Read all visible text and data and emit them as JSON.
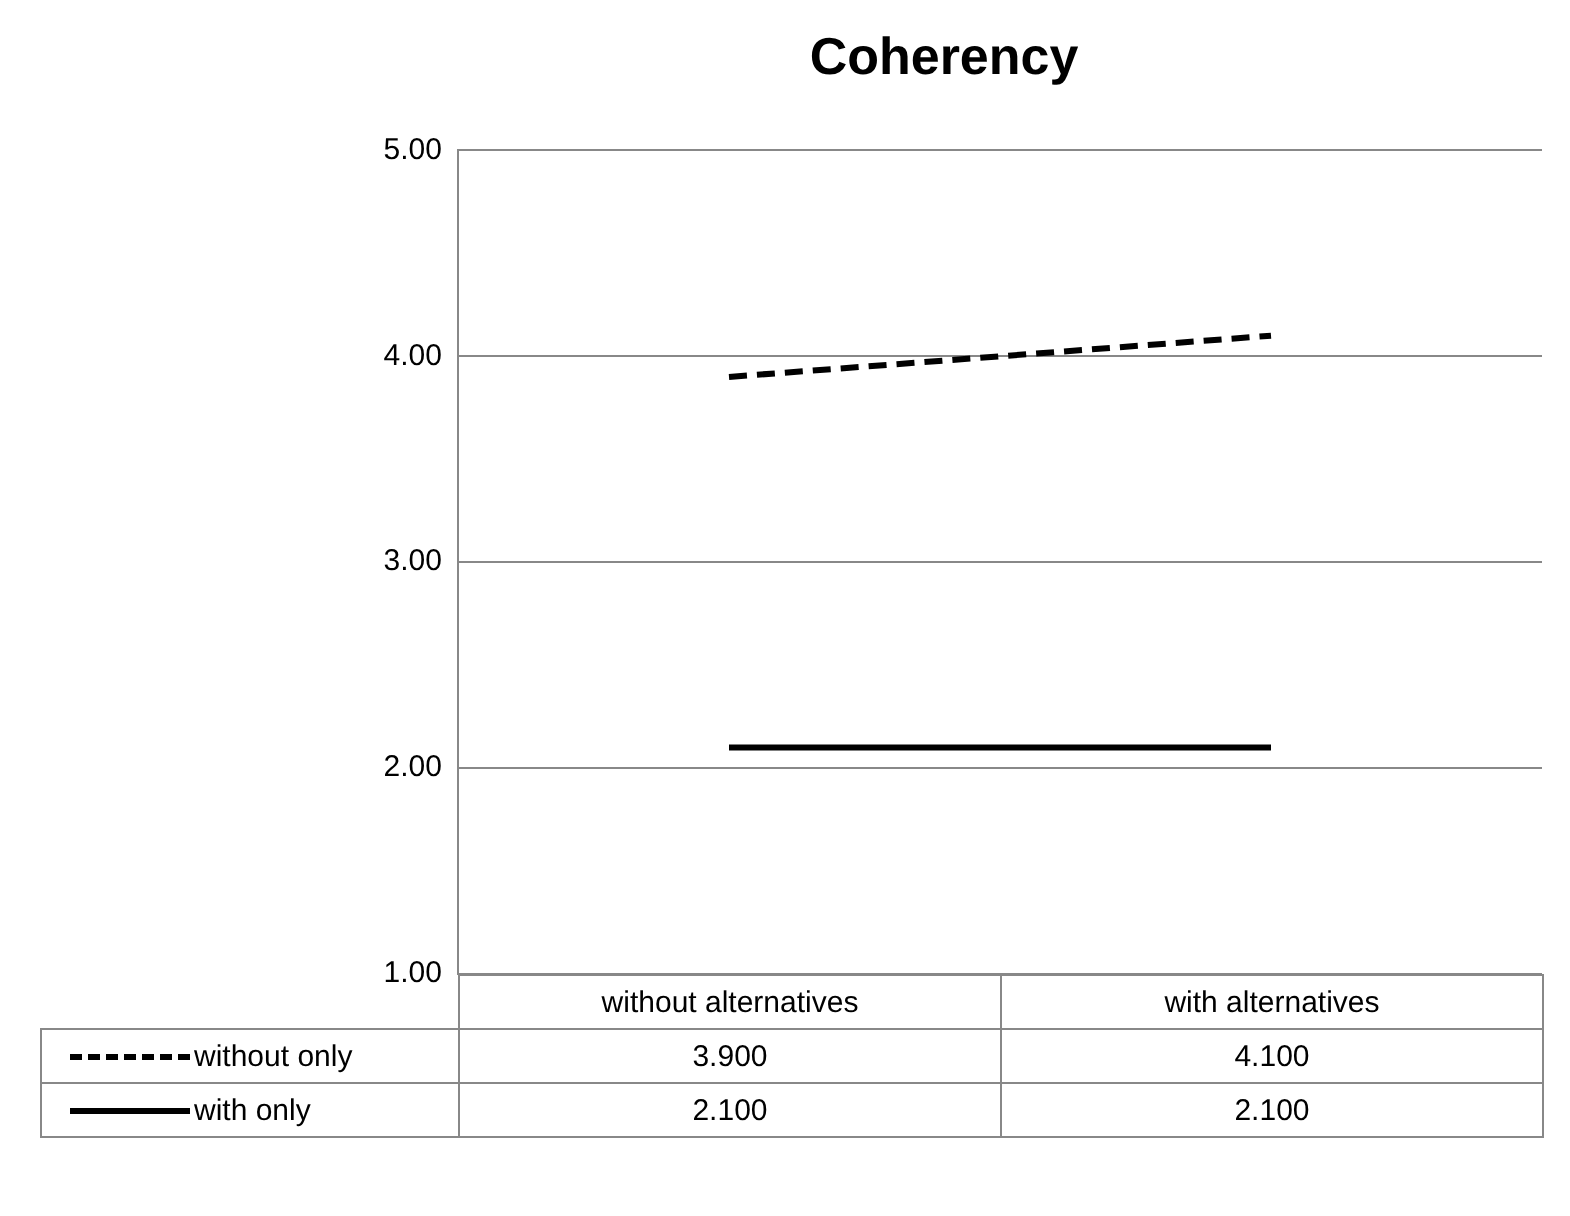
{
  "chart_data": {
    "type": "line",
    "title": "Coherency",
    "categories": [
      "without alternatives",
      "with alternatives"
    ],
    "series": [
      {
        "name": "without only",
        "color": "#000000",
        "line_style": "dashed",
        "values": [
          3.9,
          4.1
        ],
        "value_labels": [
          "3.900",
          "4.100"
        ]
      },
      {
        "name": "with only",
        "color": "#000000",
        "line_style": "solid",
        "values": [
          2.1,
          2.1
        ],
        "value_labels": [
          "2.100",
          "2.100"
        ]
      }
    ],
    "ylim": [
      1,
      5
    ],
    "yticks": [
      {
        "value": 1,
        "label": "1.00"
      },
      {
        "value": 2,
        "label": "2.00"
      },
      {
        "value": 3,
        "label": "3.00"
      },
      {
        "value": 4,
        "label": "4.00"
      },
      {
        "value": 5,
        "label": "5.00"
      }
    ],
    "grid": "y",
    "legend": "bottom",
    "marker": "none"
  }
}
